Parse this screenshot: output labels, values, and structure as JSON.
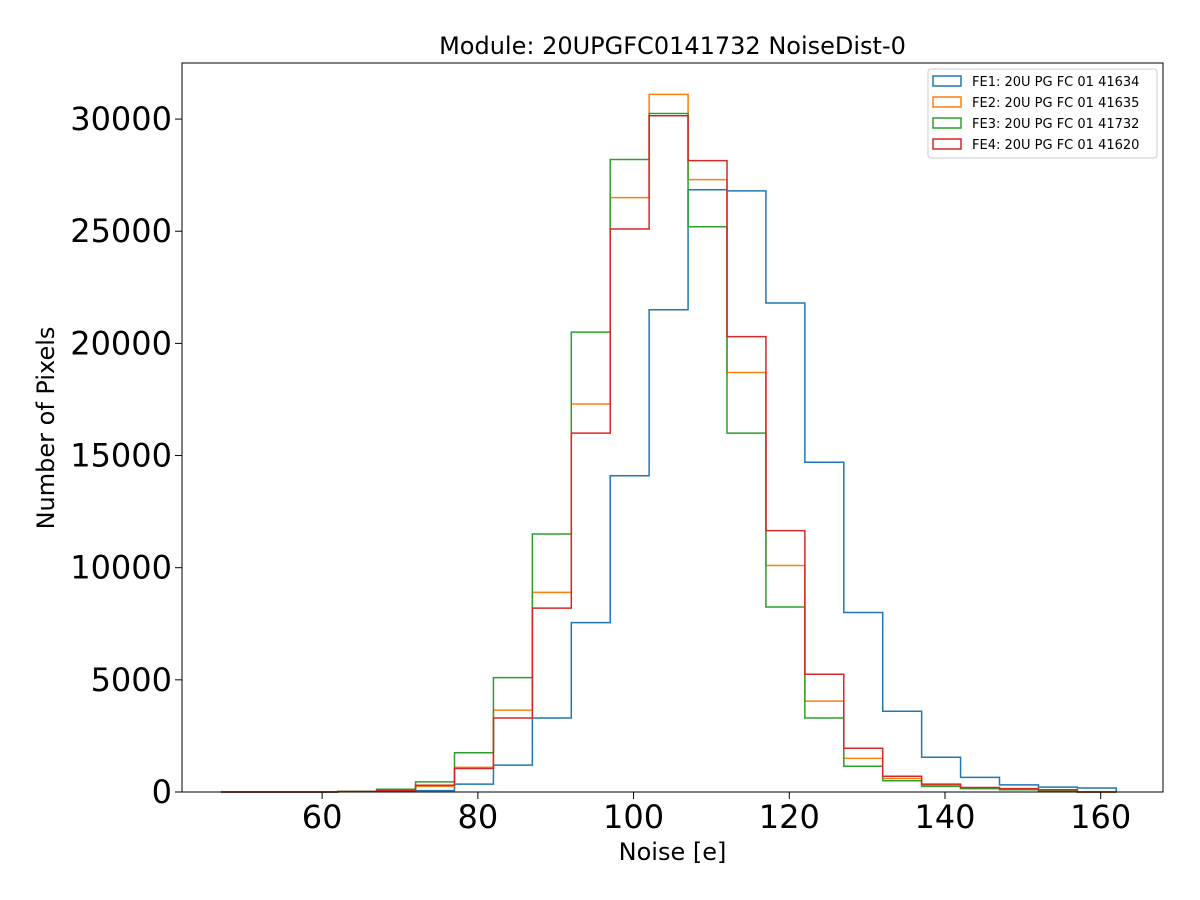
{
  "chart_data": {
    "type": "histogram-step",
    "title": "Module: 20UPGFC0141732 NoiseDist-0",
    "xlabel": "Noise [e]",
    "ylabel": "Number of Pixels",
    "xlim": [
      42,
      168
    ],
    "ylim": [
      0,
      32500
    ],
    "xticks": [
      60,
      80,
      100,
      120,
      140,
      160
    ],
    "yticks": [
      0,
      5000,
      10000,
      15000,
      20000,
      25000,
      30000
    ],
    "legend_position": "upper-right",
    "bin_edges": [
      47,
      52,
      57,
      62,
      67,
      72,
      77,
      82,
      87,
      92,
      97,
      102,
      107,
      112,
      117,
      122,
      127,
      132,
      137,
      142,
      147,
      152,
      157,
      162
    ],
    "series": [
      {
        "name": "FE1: 20U PG FC 01 41634",
        "color": "#1f77b4",
        "values": [
          0,
          0,
          0,
          10,
          30,
          60,
          350,
          1200,
          3300,
          7550,
          14100,
          21500,
          26850,
          26800,
          21800,
          14700,
          8000,
          3600,
          1550,
          650,
          320,
          220,
          180
        ]
      },
      {
        "name": "FE2: 20U PG FC 01 41635",
        "color": "#ff7f0e",
        "values": [
          0,
          0,
          0,
          20,
          80,
          250,
          1100,
          3650,
          8900,
          17300,
          26500,
          31100,
          27300,
          18700,
          10100,
          4050,
          1500,
          600,
          300,
          180,
          120,
          80,
          0
        ]
      },
      {
        "name": "FE3: 20U PG FC 01 41732",
        "color": "#2ca02c",
        "values": [
          0,
          0,
          0,
          30,
          120,
          450,
          1750,
          5100,
          11500,
          20500,
          28200,
          30250,
          25200,
          16000,
          8250,
          3300,
          1150,
          500,
          250,
          150,
          100,
          50,
          0
        ]
      },
      {
        "name": "FE4: 20U PG FC 01 41620",
        "color": "#d62728",
        "values": [
          0,
          0,
          0,
          20,
          80,
          300,
          1050,
          3300,
          8200,
          16000,
          25100,
          30150,
          28150,
          20300,
          11650,
          5250,
          1950,
          700,
          350,
          200,
          150,
          100,
          0
        ]
      }
    ]
  }
}
